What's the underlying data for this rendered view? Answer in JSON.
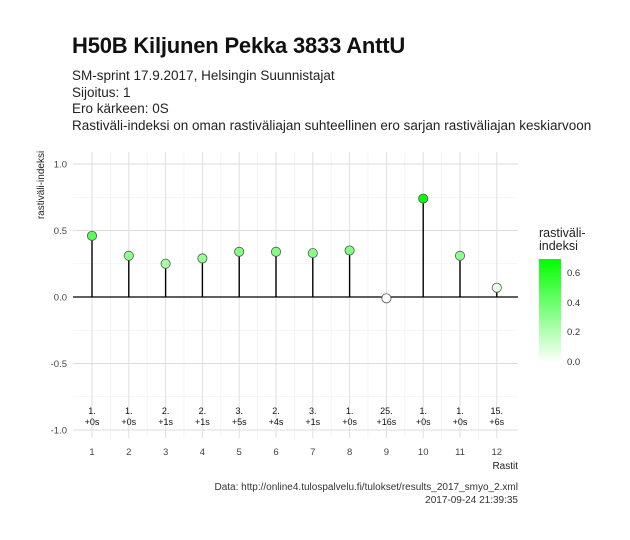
{
  "title": "H50B Kiljunen Pekka 3833 AnttU",
  "subtitle_lines": [
    "SM-sprint 17.9.2017, Helsingin Suunnistajat",
    "Sijoitus: 1",
    "Ero kärkeen: 0S",
    "Rastiväli-indeksi on oman rastiväliajan suhteellinen ero sarjan rastiväliajan keskiarvoon"
  ],
  "caption_lines": [
    "Data: http://online4.tulospalvelu.fi/tulokset/results_2017_smyo_2.xml",
    "2017-09-24 21:39:35"
  ],
  "legend": {
    "title_lines": [
      "rastiväli-",
      "indeksi"
    ],
    "ticks": [
      "0.6",
      "0.4",
      "0.2",
      "0.0"
    ],
    "tick_values": [
      0.6,
      0.4,
      0.2,
      0.0
    ],
    "range": [
      0,
      0.7
    ],
    "colors": {
      "low": "#ffffff",
      "mid": "#80ff80",
      "high": "#00ff00"
    }
  },
  "chart_data": {
    "type": "lollipop",
    "title": "H50B Kiljunen Pekka 3833 AnttU",
    "xlabel": "Rastit",
    "ylabel": "rastiväli-indeksi",
    "ylim": [
      -1.0,
      1.0
    ],
    "xlim": [
      1,
      12
    ],
    "yticks": [
      "1.0",
      "0.5",
      "0.0",
      "-0.5",
      "-1.0"
    ],
    "ytick_values": [
      1.0,
      0.5,
      0.0,
      -0.5,
      -1.0
    ],
    "x": [
      1,
      2,
      3,
      4,
      5,
      6,
      7,
      8,
      9,
      10,
      11,
      12
    ],
    "xticks": [
      "1",
      "2",
      "3",
      "4",
      "5",
      "6",
      "7",
      "8",
      "9",
      "10",
      "11",
      "12"
    ],
    "values": [
      0.46,
      0.31,
      0.25,
      0.29,
      0.34,
      0.34,
      0.33,
      0.35,
      -0.01,
      0.74,
      0.31,
      0.07
    ],
    "rank_labels": [
      "1.",
      "1.",
      "2.",
      "2.",
      "3.",
      "2.",
      "3.",
      "1.",
      "25.",
      "1.",
      "1.",
      "15."
    ],
    "diff_labels": [
      "+0s",
      "+0s",
      "+1s",
      "+1s",
      "+5s",
      "+4s",
      "+1s",
      "+0s",
      "+16s",
      "+0s",
      "+0s",
      "+6s"
    ],
    "grid": true,
    "legend_position": "right"
  }
}
